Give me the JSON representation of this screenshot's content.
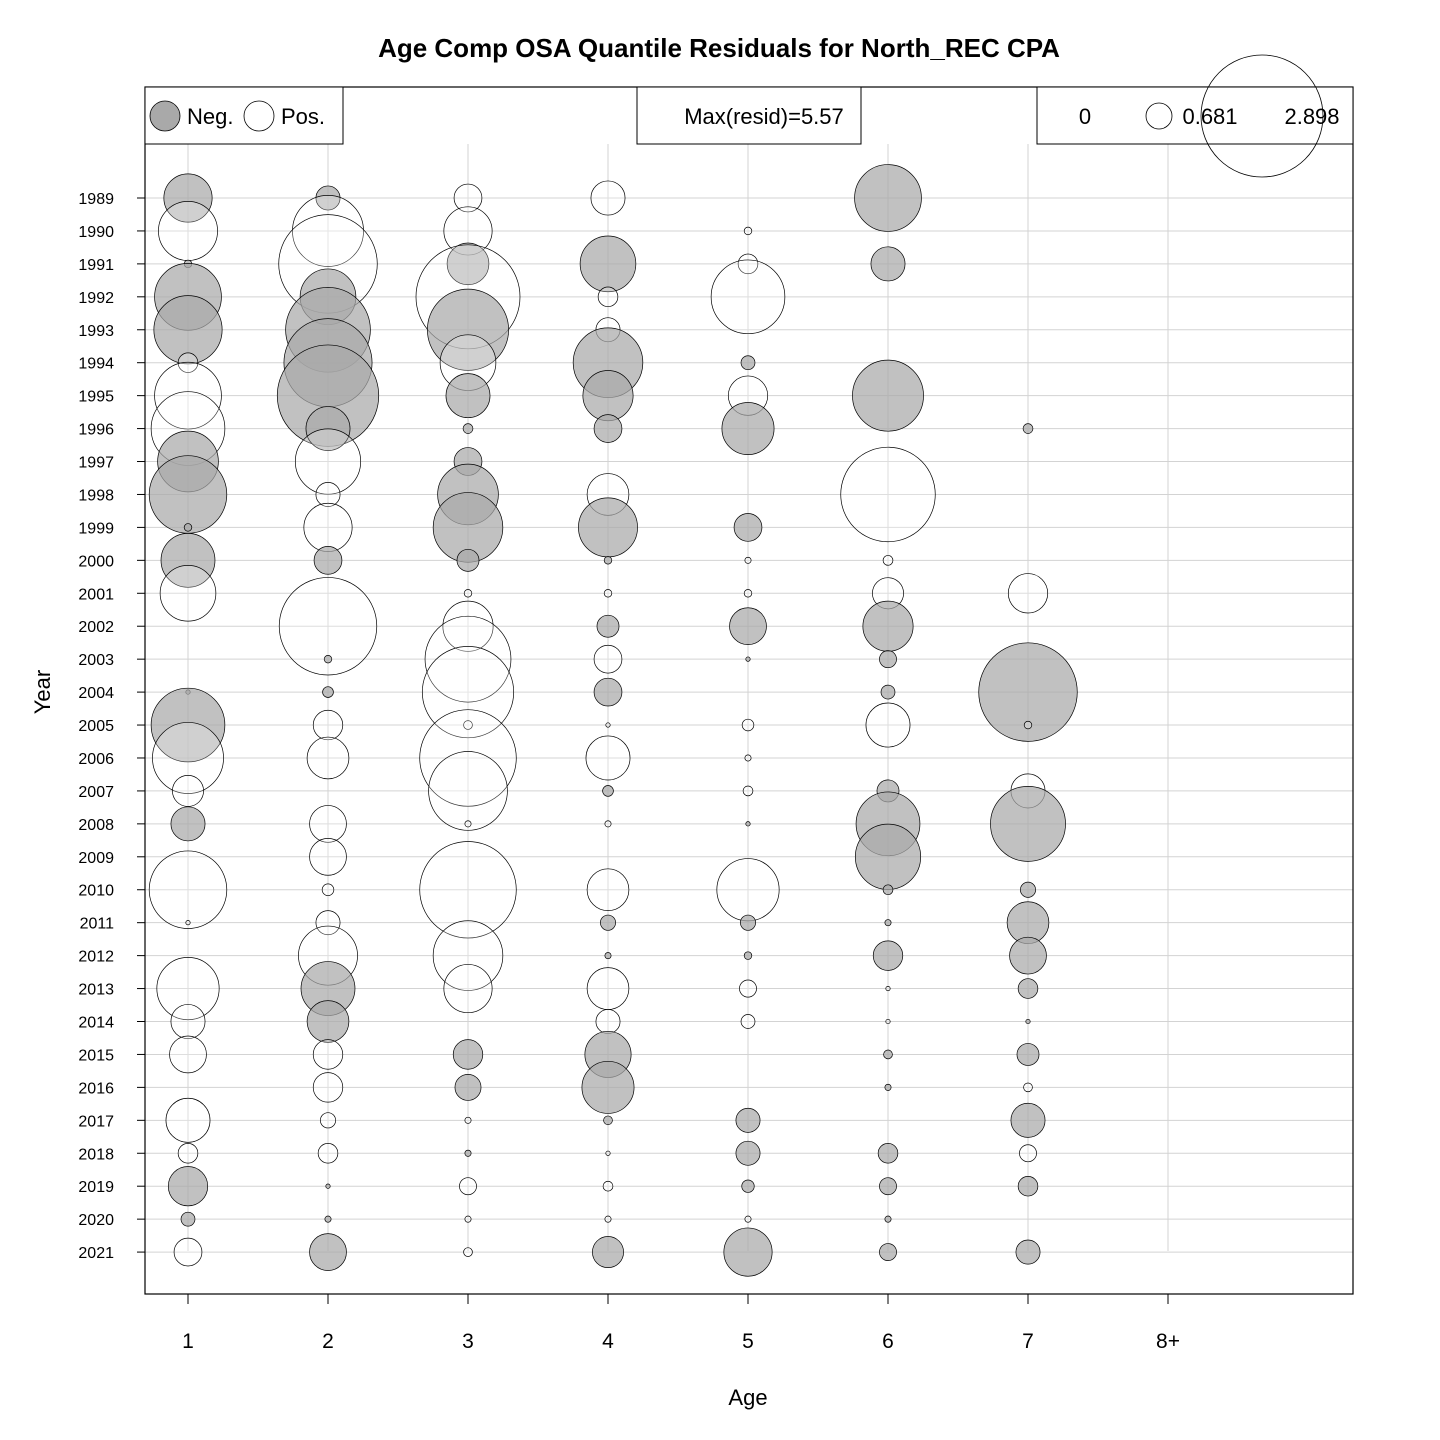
{
  "chart_data": {
    "type": "bubble",
    "title": "Age Comp OSA Quantile Residuals for North_REC CPA",
    "xlabel": "Age",
    "ylabel": "Year",
    "ages": [
      "1",
      "2",
      "3",
      "4",
      "5",
      "6",
      "7",
      "8+"
    ],
    "years": [
      1989,
      1990,
      1991,
      1992,
      1993,
      1994,
      1995,
      1996,
      1997,
      1998,
      1999,
      2000,
      2001,
      2002,
      2003,
      2004,
      2005,
      2006,
      2007,
      2008,
      2009,
      2010,
      2011,
      2012,
      2013,
      2014,
      2015,
      2016,
      2017,
      2018,
      2019,
      2020,
      2021
    ],
    "grid": true,
    "legend": {
      "sign_labels": [
        "Neg.",
        "Pos."
      ],
      "max_label": "Max(resid)=5.57",
      "size_labels": [
        "0",
        "0.681",
        "2.898"
      ]
    },
    "colors": {
      "negative": "#a9a9a9",
      "positive": "#ffffff",
      "stroke": "#000000",
      "grid": "#d3d3d3"
    },
    "residuals": [
      [
        -1.2,
        -0.3,
        0.4,
        0.6,
        0.0,
        -2.3,
        0.0,
        0.0
      ],
      [
        1.8,
        2.6,
        1.2,
        0.0,
        0.03,
        0.0,
        0.0,
        0.0
      ],
      [
        -0.03,
        5.0,
        -0.9,
        -1.6,
        0.2,
        -0.6,
        0.0,
        0.0
      ],
      [
        -2.3,
        -1.6,
        5.57,
        0.2,
        2.8,
        0.0,
        0.0,
        0.0
      ],
      [
        -2.4,
        -3.7,
        -3.4,
        0.3,
        0.0,
        0.0,
        0.0,
        0.0
      ],
      [
        0.2,
        -4.0,
        1.6,
        -2.5,
        -0.1,
        0.0,
        0.0,
        0.0
      ],
      [
        2.3,
        -5.3,
        -1.0,
        -1.3,
        0.8,
        -2.6,
        0.0,
        0.0
      ],
      [
        2.8,
        -1.0,
        -0.05,
        -0.4,
        -1.4,
        0.0,
        -0.05,
        0.0
      ],
      [
        -1.9,
        2.2,
        -0.4,
        0.0,
        0.0,
        0.0,
        0.0,
        0.0
      ],
      [
        -3.1,
        0.3,
        -1.9,
        0.9,
        0.0,
        4.6,
        0.0,
        0.0
      ],
      [
        -0.03,
        1.2,
        -2.5,
        -1.8,
        -0.4,
        0.0,
        0.0,
        0.0
      ],
      [
        -1.5,
        -0.4,
        -0.25,
        -0.03,
        0.02,
        0.05,
        0.0,
        0.0
      ],
      [
        1.6,
        0.0,
        0.03,
        0.03,
        0.03,
        0.5,
        0.8,
        0.0
      ],
      [
        0.0,
        4.9,
        1.3,
        -0.25,
        -0.7,
        -1.3,
        0.0,
        0.0
      ],
      [
        0.0,
        -0.03,
        3.8,
        0.4,
        -0.01,
        -0.15,
        0.0,
        0.0
      ],
      [
        -0.01,
        -0.06,
        4.3,
        -0.4,
        0.0,
        -0.1,
        -5.0,
        0.0
      ],
      [
        -2.8,
        0.45,
        0.04,
        0.01,
        0.07,
        1.0,
        0.03,
        0.0
      ],
      [
        2.6,
        0.9,
        4.8,
        1.0,
        0.02,
        0.0,
        0.0,
        0.0
      ],
      [
        0.5,
        0.0,
        3.2,
        -0.06,
        0.05,
        -0.25,
        0.6,
        0.0
      ],
      [
        -0.6,
        0.7,
        0.02,
        0.02,
        -0.01,
        -2.1,
        -2.9,
        0.0
      ],
      [
        0.0,
        0.7,
        0.0,
        0.0,
        0.0,
        -2.2,
        0.0,
        0.0
      ],
      [
        3.1,
        0.07,
        4.8,
        0.9,
        2.0,
        -0.05,
        -0.12,
        0.0
      ],
      [
        0.01,
        0.3,
        0.0,
        -0.12,
        -0.12,
        -0.02,
        -0.9,
        0.0
      ],
      [
        0.0,
        1.8,
        2.5,
        -0.02,
        -0.03,
        -0.45,
        -0.7,
        0.0
      ],
      [
        2.0,
        -1.5,
        1.2,
        0.9,
        0.15,
        0.01,
        -0.2,
        0.0
      ],
      [
        0.6,
        -0.9,
        0.0,
        0.3,
        0.1,
        0.01,
        -0.01,
        0.0
      ],
      [
        0.7,
        0.45,
        -0.45,
        -1.1,
        0.0,
        -0.04,
        -0.25,
        0.0
      ],
      [
        0.0,
        0.45,
        -0.35,
        -1.4,
        0.0,
        -0.02,
        0.04,
        0.0
      ],
      [
        1.0,
        0.12,
        0.02,
        -0.04,
        -0.3,
        0.0,
        -0.6,
        0.0
      ],
      [
        0.2,
        0.2,
        -0.02,
        0.01,
        -0.3,
        -0.2,
        0.15,
        0.0
      ],
      [
        -0.8,
        -0.01,
        0.15,
        0.05,
        -0.08,
        -0.15,
        -0.2,
        0.0
      ],
      [
        -0.1,
        -0.02,
        0.02,
        0.02,
        0.02,
        -0.02,
        0.0,
        0.0
      ],
      [
        0.4,
        -0.7,
        0.04,
        -0.5,
        -1.2,
        -0.15,
        -0.3,
        0.0
      ]
    ]
  }
}
